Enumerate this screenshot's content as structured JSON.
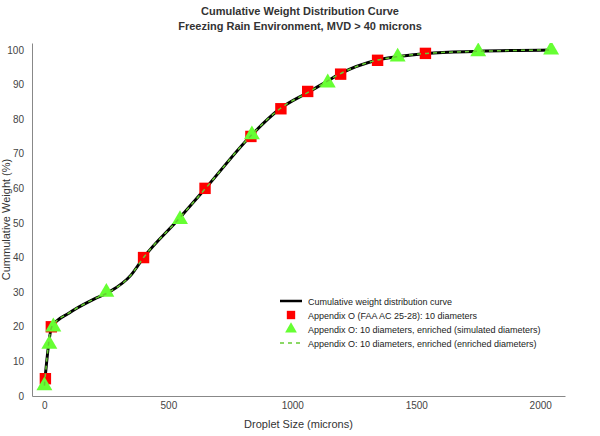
{
  "chart_data": {
    "type": "line",
    "title": "Cumulative Weight Distribution Curve",
    "subtitle": "Freezing Rain Environment, MVD > 40 microns",
    "x_label": "Droplet Size (microns)",
    "y_label": "Cummulative Weight (%)",
    "xlim": [
      -50,
      2100
    ],
    "xticks": [
      0,
      500,
      1000,
      1500,
      2000
    ],
    "ylim": [
      0,
      102
    ],
    "yticks": [
      0,
      10,
      20,
      30,
      40,
      50,
      60,
      70,
      80,
      90,
      100
    ],
    "grid": false,
    "legend": "lower right",
    "series": [
      {
        "name": "Cumulative weight distribution curve",
        "type": "line",
        "color": "#000000",
        "marker": "none",
        "line_style": "solid",
        "x": [
          0,
          30,
          100,
          200,
          260,
          350,
          400,
          540,
          650,
          830,
          950,
          1070,
          1130,
          1190,
          1340,
          1420,
          1540,
          1750,
          2050
        ],
        "values": [
          3,
          20,
          24,
          28,
          30,
          35,
          40,
          51,
          60,
          75,
          83,
          88,
          90.5,
          93,
          97,
          98,
          99,
          99.6,
          100
        ]
      },
      {
        "name": "Appendix O (FAA AC 25-28): 10 diameters",
        "type": "scatter",
        "color": "#ff0000",
        "marker": "square",
        "line_style": "none",
        "x": [
          4,
          28,
          400,
          648,
          833,
          954,
          1062,
          1195,
          1344,
          1537
        ],
        "values": [
          5,
          20,
          40,
          60,
          75,
          83,
          88,
          93,
          97,
          99
        ]
      },
      {
        "name": "Appendix O: 10 diameters, enriched (simulated diameters)",
        "type": "scatter",
        "color": "#66ff33",
        "marker": "triangle",
        "line_style": "none",
        "x": [
          0,
          20,
          36,
          250,
          547,
          837,
          1143,
          1425,
          1750,
          2044
        ],
        "values": [
          3,
          15,
          20,
          30,
          51,
          75.5,
          90.5,
          98,
          99.5,
          100
        ]
      },
      {
        "name": "Appendix O: 10 diameters, enriched (enriched diameters)",
        "type": "line",
        "color": "#66cc33",
        "marker": "none",
        "line_style": "dashed",
        "x": [
          0,
          30,
          100,
          200,
          260,
          350,
          400,
          540,
          650,
          830,
          950,
          1070,
          1130,
          1190,
          1340,
          1420,
          1540,
          1750,
          2050
        ],
        "values": [
          3,
          20,
          24,
          28,
          30,
          35,
          40,
          51,
          60,
          75,
          83,
          88,
          90.5,
          93,
          97,
          98,
          99,
          99.6,
          100
        ]
      }
    ]
  }
}
